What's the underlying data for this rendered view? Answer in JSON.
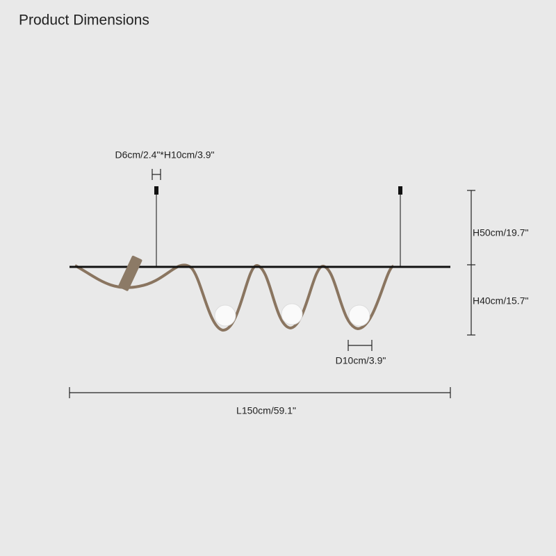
{
  "title": "Product Dimensions",
  "dimensions": {
    "spotlight": "D6cm/2.4\"*H10cm/3.9\"",
    "upper_height": "H50cm/19.7\"",
    "lower_height": "H40cm/15.7\"",
    "globe": "D10cm/3.9\"",
    "length": "L150cm/59.1\""
  }
}
